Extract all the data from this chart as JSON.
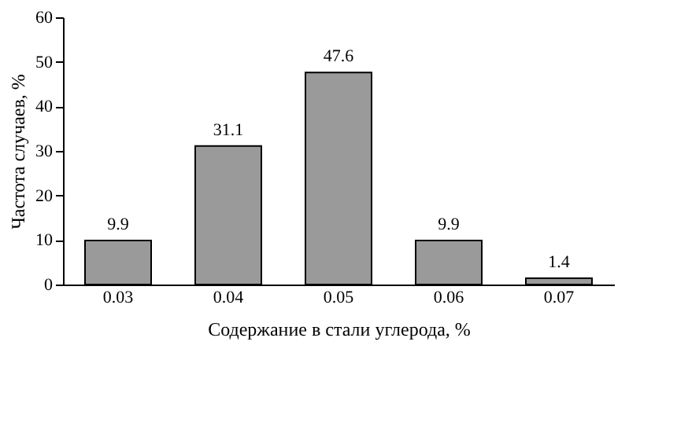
{
  "chart_data": {
    "type": "bar",
    "xlabel": "Содержание в стали углерода, %",
    "ylabel": "Частота случаев, %",
    "categories": [
      "0.03",
      "0.04",
      "0.05",
      "0.06",
      "0.07"
    ],
    "values": [
      9.9,
      31.1,
      47.6,
      9.9,
      1.4
    ],
    "color": "#9a9a9a",
    "data_labels": true,
    "ylim": [
      0,
      60
    ],
    "yticks": [
      0,
      10,
      20,
      30,
      40,
      50,
      60
    ],
    "grid": false
  }
}
